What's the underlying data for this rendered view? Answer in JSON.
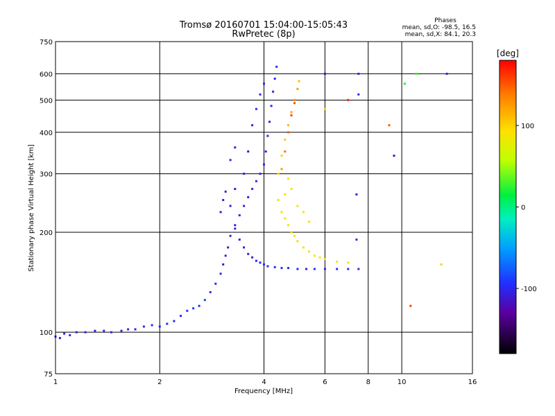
{
  "title_line1": "Tromsø 20160701 15:04:00-15:05:43",
  "title_line2": "RwPretec (8p)",
  "stats": {
    "header": "Phases",
    "line_o": "mean, sd,O: -98.5, 16.5",
    "line_x": "mean, sd,X:  84.1, 20.3"
  },
  "colorbar": {
    "unit": "[deg]",
    "range": [
      -180,
      180
    ],
    "ticks": [
      100,
      0,
      -100
    ],
    "tick_labels": [
      "100",
      "0",
      "-100"
    ]
  },
  "chart_data": {
    "type": "scatter",
    "xlabel": "Frequency [MHz]",
    "ylabel": "Stationary phase Virtual Height [km]",
    "xscale": "log",
    "yscale": "log",
    "xlim": [
      1,
      16
    ],
    "ylim": [
      75,
      750
    ],
    "xticks": [
      1,
      2,
      4,
      6,
      8,
      10,
      16
    ],
    "xtick_labels": [
      "1",
      "2",
      "4",
      "6",
      "8",
      "10",
      "16"
    ],
    "yticks": [
      75,
      100,
      200,
      300,
      400,
      500,
      600,
      750
    ],
    "ytick_labels": [
      "75",
      "100",
      "200",
      "300",
      "400",
      "500",
      "600",
      "750"
    ],
    "grid": true,
    "color_by": "phase (deg)",
    "points": [
      [
        1.0,
        97,
        -105
      ],
      [
        1.03,
        96,
        -110
      ],
      [
        1.06,
        99,
        -100
      ],
      [
        1.1,
        98,
        -105
      ],
      [
        1.15,
        100,
        -108
      ],
      [
        1.22,
        100,
        -102
      ],
      [
        1.3,
        101,
        -105
      ],
      [
        1.38,
        101,
        -100
      ],
      [
        1.45,
        100,
        -103
      ],
      [
        1.55,
        101,
        -98
      ],
      [
        1.62,
        102,
        -101
      ],
      [
        1.7,
        102,
        -104
      ],
      [
        1.8,
        104,
        -100
      ],
      [
        1.9,
        105,
        -98
      ],
      [
        2.0,
        104,
        -102
      ],
      [
        2.1,
        106,
        -97
      ],
      [
        2.2,
        108,
        -100
      ],
      [
        2.3,
        112,
        -95
      ],
      [
        2.4,
        116,
        -92
      ],
      [
        2.5,
        118,
        -90
      ],
      [
        2.6,
        120,
        -100
      ],
      [
        2.7,
        125,
        -85
      ],
      [
        2.8,
        132,
        -98
      ],
      [
        2.9,
        140,
        -100
      ],
      [
        3.0,
        150,
        -102
      ],
      [
        3.05,
        160,
        -110
      ],
      [
        3.1,
        170,
        -105
      ],
      [
        3.15,
        180,
        -112
      ],
      [
        3.2,
        195,
        -108
      ],
      [
        3.3,
        210,
        -110
      ],
      [
        3.4,
        225,
        -100
      ],
      [
        3.5,
        240,
        -105
      ],
      [
        3.6,
        255,
        -108
      ],
      [
        3.7,
        270,
        -98
      ],
      [
        3.8,
        285,
        -100
      ],
      [
        3.9,
        300,
        -102
      ],
      [
        4.0,
        320,
        -104
      ],
      [
        4.05,
        350,
        -100
      ],
      [
        4.1,
        390,
        -98
      ],
      [
        4.15,
        430,
        -100
      ],
      [
        4.2,
        480,
        -102
      ],
      [
        4.25,
        530,
        -100
      ],
      [
        4.3,
        580,
        -98
      ],
      [
        4.35,
        630,
        -100
      ],
      [
        3.0,
        230,
        -110
      ],
      [
        3.05,
        250,
        -108
      ],
      [
        3.1,
        265,
        -105
      ],
      [
        3.2,
        240,
        -112
      ],
      [
        3.3,
        205,
        -104
      ],
      [
        3.4,
        190,
        -108
      ],
      [
        3.5,
        180,
        -110
      ],
      [
        3.6,
        172,
        -106
      ],
      [
        3.7,
        168,
        -100
      ],
      [
        3.8,
        164,
        -102
      ],
      [
        3.9,
        162,
        -104
      ],
      [
        4.0,
        160,
        -100
      ],
      [
        4.1,
        158,
        -98
      ],
      [
        4.3,
        157,
        -96
      ],
      [
        4.5,
        156,
        -98
      ],
      [
        4.7,
        156,
        -100
      ],
      [
        5.0,
        155,
        -98
      ],
      [
        5.3,
        155,
        -100
      ],
      [
        5.6,
        155,
        -97
      ],
      [
        6.0,
        155,
        -100
      ],
      [
        6.5,
        155,
        -98
      ],
      [
        7.0,
        155,
        -100
      ],
      [
        7.5,
        155,
        -98
      ],
      [
        3.3,
        270,
        -108
      ],
      [
        3.5,
        300,
        -105
      ],
      [
        3.6,
        350,
        -110
      ],
      [
        3.7,
        420,
        -102
      ],
      [
        3.8,
        470,
        -98
      ],
      [
        3.9,
        520,
        -100
      ],
      [
        4.0,
        560,
        -104
      ],
      [
        3.2,
        330,
        -100
      ],
      [
        3.3,
        360,
        -103
      ],
      [
        4.4,
        250,
        95
      ],
      [
        4.5,
        230,
        92
      ],
      [
        4.6,
        220,
        88
      ],
      [
        4.7,
        210,
        90
      ],
      [
        4.8,
        200,
        85
      ],
      [
        4.9,
        195,
        92
      ],
      [
        5.0,
        188,
        96
      ],
      [
        5.2,
        180,
        90
      ],
      [
        5.4,
        175,
        88
      ],
      [
        5.6,
        170,
        92
      ],
      [
        5.8,
        168,
        86
      ],
      [
        6.0,
        166,
        90
      ],
      [
        6.5,
        163,
        88
      ],
      [
        7.0,
        162,
        92
      ],
      [
        4.4,
        300,
        96
      ],
      [
        4.5,
        340,
        100
      ],
      [
        4.6,
        380,
        104
      ],
      [
        4.7,
        420,
        112
      ],
      [
        4.8,
        460,
        120
      ],
      [
        4.9,
        500,
        130
      ],
      [
        5.0,
        540,
        125
      ],
      [
        5.05,
        570,
        110
      ],
      [
        4.6,
        260,
        92
      ],
      [
        4.7,
        290,
        95
      ],
      [
        4.8,
        270,
        90
      ],
      [
        5.0,
        240,
        88
      ],
      [
        5.2,
        230,
        86
      ],
      [
        5.4,
        215,
        92
      ],
      [
        4.5,
        310,
        125
      ],
      [
        4.6,
        350,
        140
      ],
      [
        4.7,
        400,
        150
      ],
      [
        4.8,
        450,
        160
      ],
      [
        4.9,
        490,
        150
      ],
      [
        9.2,
        420,
        150
      ],
      [
        9.5,
        340,
        -120
      ],
      [
        10.2,
        560,
        20
      ],
      [
        10.6,
        120,
        160
      ],
      [
        11.0,
        600,
        30
      ],
      [
        13.0,
        160,
        100
      ],
      [
        13.5,
        600,
        -100
      ],
      [
        7.0,
        500,
        170
      ],
      [
        6.0,
        470,
        100
      ],
      [
        6.0,
        600,
        -110
      ],
      [
        7.4,
        260,
        -110
      ],
      [
        7.4,
        190,
        -100
      ],
      [
        7.5,
        600,
        -105
      ],
      [
        7.5,
        520,
        -100
      ]
    ]
  }
}
